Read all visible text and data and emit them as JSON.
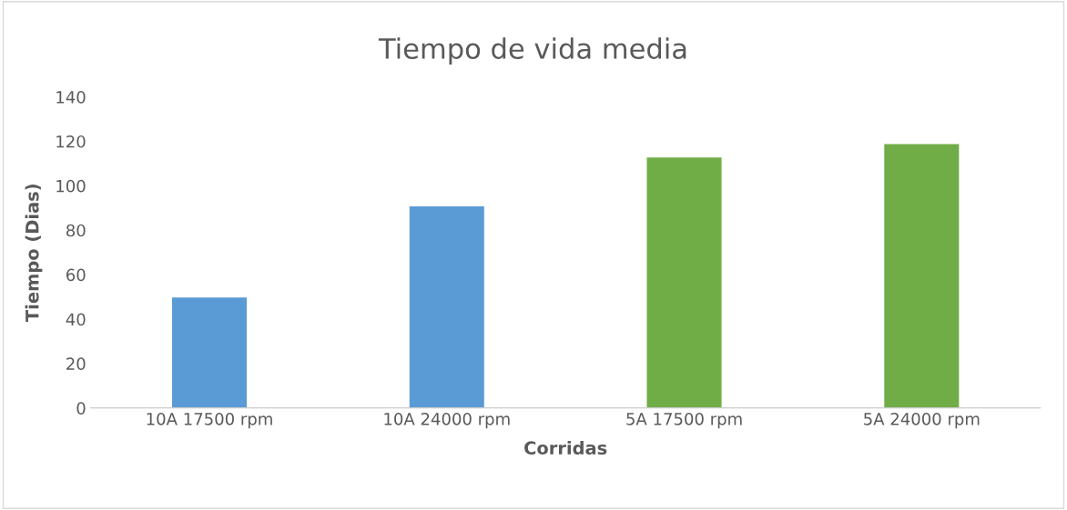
{
  "chart_data": {
    "type": "bar",
    "title": "Tiempo de vida media",
    "xlabel": "Corridas",
    "ylabel": "Tiempo (Dias)",
    "categories": [
      "10A 17500 rpm",
      "10A 24000 rpm",
      "5A 17500 rpm",
      "5A 24000 rpm"
    ],
    "values": [
      50,
      91,
      113,
      119
    ],
    "colors": [
      "#5b9bd5",
      "#5b9bd5",
      "#70ad47",
      "#70ad47"
    ],
    "ylim": [
      0,
      140
    ],
    "yticks": [
      0,
      20,
      40,
      60,
      80,
      100,
      120,
      140
    ],
    "grid": false,
    "legend": false
  }
}
